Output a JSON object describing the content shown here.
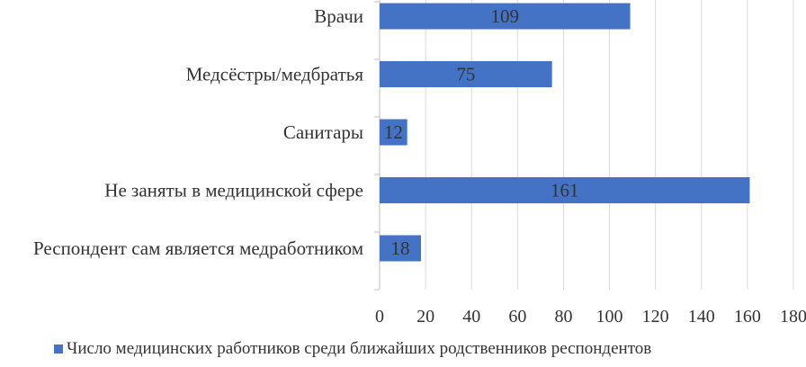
{
  "chart_data": {
    "type": "bar",
    "orientation": "horizontal",
    "categories": [
      "Врачи",
      "Медсёстры/медбратья",
      "Санитары",
      "Не заняты в медицинской сфере",
      "Респондент сам является медработником"
    ],
    "series": [
      {
        "name": "Число медицинских работников среди ближайших родственников респондентов",
        "values": [
          109,
          75,
          12,
          161,
          18
        ],
        "color": "#4472c4"
      }
    ],
    "xlim": [
      0,
      180
    ],
    "xticks": [
      0,
      20,
      40,
      60,
      80,
      100,
      120,
      140,
      160,
      180
    ],
    "grid": "vertical",
    "data_labels": true,
    "legend": "bottom"
  }
}
